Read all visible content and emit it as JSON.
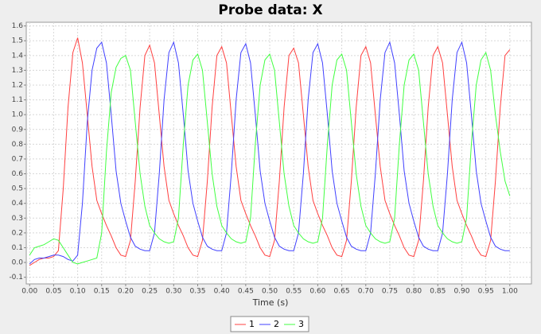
{
  "chart_data": {
    "type": "line",
    "title": "Probe data: X",
    "xlabel": "Time (s)",
    "x": [
      0,
      0.01,
      0.02,
      0.03,
      0.04,
      0.05,
      0.06,
      0.07,
      0.08,
      0.09,
      0.1,
      0.11,
      0.12,
      0.13,
      0.14,
      0.15,
      0.16,
      0.17,
      0.18,
      0.19,
      0.2,
      0.21,
      0.22,
      0.23,
      0.24,
      0.25,
      0.26,
      0.27,
      0.28,
      0.29,
      0.3,
      0.31,
      0.32,
      0.33,
      0.34,
      0.35,
      0.36,
      0.37,
      0.38,
      0.39,
      0.4,
      0.41,
      0.42,
      0.43,
      0.44,
      0.45,
      0.46,
      0.47,
      0.48,
      0.49,
      0.5,
      0.51,
      0.52,
      0.53,
      0.54,
      0.55,
      0.56,
      0.57,
      0.58,
      0.59,
      0.6,
      0.61,
      0.62,
      0.63,
      0.64,
      0.65,
      0.66,
      0.67,
      0.68,
      0.69,
      0.7,
      0.71,
      0.72,
      0.73,
      0.74,
      0.75,
      0.76,
      0.77,
      0.78,
      0.79,
      0.8,
      0.81,
      0.82,
      0.83,
      0.84,
      0.85,
      0.86,
      0.87,
      0.88,
      0.89,
      0.9,
      0.91,
      0.92,
      0.93,
      0.94,
      0.95,
      0.96,
      0.97,
      0.98,
      0.99,
      1.0
    ],
    "series": [
      {
        "name": "1",
        "color": "#ff4040",
        "values": [
          -0.02,
          0.0,
          0.02,
          0.03,
          0.03,
          0.04,
          0.08,
          0.5,
          1.05,
          1.42,
          1.52,
          1.35,
          1.0,
          0.65,
          0.42,
          0.33,
          0.25,
          0.18,
          0.1,
          0.05,
          0.04,
          0.15,
          0.55,
          1.05,
          1.4,
          1.47,
          1.35,
          1.0,
          0.65,
          0.42,
          0.33,
          0.25,
          0.18,
          0.1,
          0.05,
          0.04,
          0.15,
          0.55,
          1.05,
          1.4,
          1.46,
          1.35,
          1.0,
          0.65,
          0.42,
          0.33,
          0.25,
          0.18,
          0.1,
          0.05,
          0.04,
          0.15,
          0.55,
          1.05,
          1.4,
          1.45,
          1.35,
          1.0,
          0.65,
          0.42,
          0.33,
          0.25,
          0.18,
          0.1,
          0.05,
          0.04,
          0.15,
          0.55,
          1.05,
          1.4,
          1.46,
          1.35,
          1.0,
          0.65,
          0.42,
          0.33,
          0.25,
          0.18,
          0.1,
          0.05,
          0.04,
          0.15,
          0.55,
          1.05,
          1.4,
          1.46,
          1.35,
          1.0,
          0.65,
          0.42,
          0.33,
          0.25,
          0.18,
          0.1,
          0.05,
          0.04,
          0.15,
          0.55,
          1.05,
          1.4,
          1.44
        ]
      },
      {
        "name": "2",
        "color": "#4040ff",
        "values": [
          -0.01,
          0.02,
          0.03,
          0.03,
          0.04,
          0.05,
          0.05,
          0.04,
          0.02,
          0.01,
          0.05,
          0.4,
          0.95,
          1.3,
          1.45,
          1.49,
          1.35,
          1.0,
          0.62,
          0.4,
          0.28,
          0.17,
          0.11,
          0.09,
          0.08,
          0.08,
          0.2,
          0.6,
          1.1,
          1.42,
          1.49,
          1.35,
          1.0,
          0.62,
          0.4,
          0.28,
          0.17,
          0.11,
          0.09,
          0.08,
          0.08,
          0.2,
          0.6,
          1.1,
          1.42,
          1.48,
          1.35,
          1.0,
          0.62,
          0.4,
          0.28,
          0.17,
          0.11,
          0.09,
          0.08,
          0.08,
          0.2,
          0.6,
          1.1,
          1.42,
          1.48,
          1.35,
          1.0,
          0.62,
          0.4,
          0.28,
          0.17,
          0.11,
          0.09,
          0.08,
          0.08,
          0.2,
          0.6,
          1.1,
          1.42,
          1.49,
          1.35,
          1.0,
          0.62,
          0.4,
          0.28,
          0.17,
          0.11,
          0.09,
          0.08,
          0.08,
          0.2,
          0.6,
          1.1,
          1.42,
          1.49,
          1.35,
          1.0,
          0.62,
          0.4,
          0.28,
          0.17,
          0.11,
          0.09,
          0.08,
          0.08
        ]
      },
      {
        "name": "3",
        "color": "#40ff40",
        "values": [
          0.05,
          0.1,
          0.11,
          0.12,
          0.14,
          0.16,
          0.15,
          0.1,
          0.05,
          0.0,
          -0.01,
          0.0,
          0.01,
          0.02,
          0.03,
          0.2,
          0.75,
          1.15,
          1.32,
          1.38,
          1.4,
          1.3,
          0.95,
          0.6,
          0.38,
          0.25,
          0.2,
          0.16,
          0.14,
          0.13,
          0.14,
          0.3,
          0.8,
          1.2,
          1.37,
          1.41,
          1.3,
          0.95,
          0.6,
          0.38,
          0.25,
          0.2,
          0.16,
          0.14,
          0.13,
          0.14,
          0.3,
          0.8,
          1.2,
          1.37,
          1.41,
          1.3,
          0.95,
          0.6,
          0.38,
          0.25,
          0.2,
          0.16,
          0.14,
          0.13,
          0.14,
          0.3,
          0.8,
          1.2,
          1.37,
          1.41,
          1.3,
          0.95,
          0.6,
          0.38,
          0.25,
          0.2,
          0.16,
          0.14,
          0.13,
          0.14,
          0.3,
          0.8,
          1.2,
          1.37,
          1.41,
          1.3,
          0.95,
          0.6,
          0.38,
          0.25,
          0.2,
          0.16,
          0.14,
          0.13,
          0.14,
          0.3,
          0.8,
          1.2,
          1.37,
          1.42,
          1.3,
          1.0,
          0.75,
          0.55,
          0.45
        ]
      }
    ],
    "xlim": [
      -0.007,
      1.045
    ],
    "ylim": [
      -0.145,
      1.625
    ],
    "xticks": [
      {
        "value": 0,
        "label": "0.00"
      },
      {
        "value": 0.05,
        "label": "0.05"
      },
      {
        "value": 0.1,
        "label": "0.10"
      },
      {
        "value": 0.15,
        "label": "0.15"
      },
      {
        "value": 0.2,
        "label": "0.20"
      },
      {
        "value": 0.25,
        "label": "0.25"
      },
      {
        "value": 0.3,
        "label": "0.30"
      },
      {
        "value": 0.35,
        "label": "0.35"
      },
      {
        "value": 0.4,
        "label": "0.40"
      },
      {
        "value": 0.45,
        "label": "0.45"
      },
      {
        "value": 0.5,
        "label": "0.50"
      },
      {
        "value": 0.55,
        "label": "0.55"
      },
      {
        "value": 0.6,
        "label": "0.60"
      },
      {
        "value": 0.65,
        "label": "0.65"
      },
      {
        "value": 0.7,
        "label": "0.70"
      },
      {
        "value": 0.75,
        "label": "0.75"
      },
      {
        "value": 0.8,
        "label": "0.80"
      },
      {
        "value": 0.85,
        "label": "0.85"
      },
      {
        "value": 0.9,
        "label": "0.90"
      },
      {
        "value": 0.95,
        "label": "0.95"
      },
      {
        "value": 1,
        "label": "1.00"
      }
    ],
    "yticks": [
      -0.1,
      {
        "value": 0,
        "label": "0.0"
      },
      0.1,
      0.2,
      0.3,
      0.4,
      0.5,
      0.6,
      0.7,
      0.8,
      0.9,
      {
        "value": 1,
        "label": "1.0"
      },
      1.1,
      1.2,
      1.3,
      1.4,
      1.5,
      1.6
    ],
    "grid": true,
    "legend": "bottom"
  }
}
